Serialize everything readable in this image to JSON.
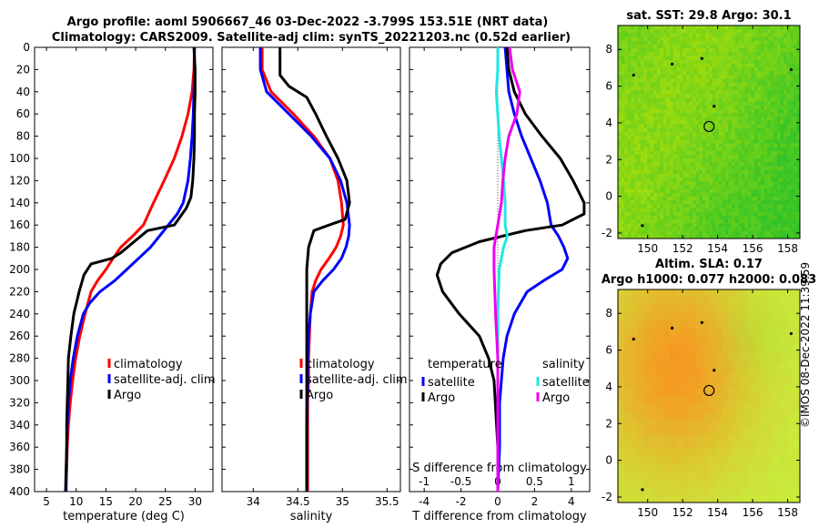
{
  "title_line1": "Argo profile: aoml 5906667_46 03-Dec-2022 -3.799S 153.51E (NRT data)",
  "title_line2": "Climatology: CARS2009. Satellite-adj clim: synTS_20221203.nc (0.52d earlier)",
  "credit": "©IMOS 08-Dec-2022 11:39:59",
  "colors": {
    "climatology": "#ff0000",
    "satellite": "#0000ff",
    "argo": "#000000",
    "sal_sat": "#22e5e5",
    "sal_argo": "#ee00ee"
  },
  "depth_ticks": [
    "0",
    "20",
    "40",
    "60",
    "80",
    "100",
    "120",
    "140",
    "160",
    "180",
    "200",
    "220",
    "240",
    "260",
    "280",
    "300",
    "320",
    "340",
    "360",
    "380",
    "400"
  ],
  "chart_data": [
    {
      "type": "line",
      "name": "temperature",
      "xlabel": "temperature (deg C)",
      "xlim": [
        3,
        33
      ],
      "ylim": [
        400,
        0
      ],
      "xticks": [
        "5",
        "10",
        "15",
        "20",
        "25",
        "30"
      ],
      "legend": [
        "climatology",
        "satellite-adj. clim",
        "Argo"
      ],
      "series": [
        {
          "name": "climatology",
          "color": "#ff0000",
          "x": [
            29.9,
            29.8,
            29.5,
            28.8,
            27.8,
            26.5,
            24.8,
            23,
            21.3,
            19.5,
            17.5,
            16.2,
            15,
            13.6,
            12.5,
            11.5,
            10.6,
            9.9,
            9.4,
            9,
            8.7,
            8.5,
            8.4,
            8.3,
            8.3
          ],
          "y": [
            0,
            20,
            40,
            60,
            80,
            100,
            120,
            140,
            160,
            170,
            180,
            190,
            200,
            210,
            220,
            240,
            260,
            280,
            300,
            320,
            340,
            360,
            380,
            390,
            400
          ]
        },
        {
          "name": "satellite-adj. clim",
          "color": "#0000ff",
          "x": [
            29.9,
            29.9,
            29.8,
            29.7,
            29.5,
            29.2,
            28.8,
            28,
            27,
            25.5,
            24,
            22.5,
            20.5,
            18.5,
            16.5,
            14,
            12.3,
            11.2,
            10.2,
            9.5,
            9,
            8.7,
            8.5,
            8.4,
            8.3
          ],
          "y": [
            0,
            20,
            40,
            60,
            80,
            100,
            120,
            140,
            150,
            160,
            170,
            180,
            190,
            200,
            210,
            220,
            230,
            240,
            260,
            280,
            300,
            320,
            340,
            360,
            400
          ]
        },
        {
          "name": "Argo",
          "color": "#000000",
          "x": [
            29.8,
            30,
            30,
            29.9,
            29.9,
            29.8,
            29.6,
            29.3,
            28.5,
            26.5,
            22,
            17.5,
            16,
            12.5,
            11.3,
            10.5,
            9.6,
            9.1,
            8.7,
            8.6,
            8.5,
            8.4,
            8.4,
            8.3,
            8.2
          ],
          "y": [
            0,
            20,
            40,
            60,
            80,
            100,
            120,
            135,
            145,
            160,
            165,
            185,
            190,
            195,
            205,
            220,
            240,
            260,
            280,
            300,
            320,
            340,
            360,
            380,
            400
          ]
        }
      ]
    },
    {
      "type": "line",
      "name": "salinity",
      "xlabel": "salinity",
      "xlim": [
        33.65,
        35.65
      ],
      "ylim": [
        400,
        0
      ],
      "xticks": [
        "34",
        "34.5",
        "35",
        "35.5"
      ],
      "legend": [
        "climatology",
        "satellite-adj. clim",
        "Argo"
      ],
      "series": [
        {
          "name": "climatology",
          "color": "#ff0000",
          "x": [
            34.1,
            34.1,
            34.2,
            34.45,
            34.68,
            34.86,
            34.95,
            34.99,
            35.01,
            34.98,
            34.93,
            34.85,
            34.76,
            34.7,
            34.66,
            34.64,
            34.63,
            34.62,
            34.62,
            34.61,
            34.61,
            34.61
          ],
          "y": [
            0,
            20,
            40,
            60,
            80,
            100,
            120,
            140,
            160,
            170,
            180,
            190,
            200,
            210,
            220,
            240,
            260,
            280,
            300,
            320,
            360,
            400
          ]
        },
        {
          "name": "satellite-adj. clim",
          "color": "#0000ff",
          "x": [
            34.08,
            34.08,
            34.15,
            34.4,
            34.65,
            34.86,
            34.98,
            35.05,
            35.08,
            35.07,
            35.04,
            34.99,
            34.9,
            34.78,
            34.68,
            34.64,
            34.62,
            34.61,
            34.61,
            34.6,
            34.6
          ],
          "y": [
            0,
            20,
            40,
            60,
            80,
            100,
            120,
            140,
            160,
            170,
            180,
            190,
            200,
            210,
            220,
            240,
            260,
            280,
            300,
            340,
            400
          ]
        },
        {
          "name": "Argo",
          "color": "#000000",
          "x": [
            34.3,
            34.3,
            34.3,
            34.4,
            34.6,
            34.7,
            34.82,
            34.95,
            35.05,
            35.08,
            35.03,
            34.85,
            34.68,
            34.62,
            34.6,
            34.6,
            34.6,
            34.6,
            34.6,
            34.6
          ],
          "y": [
            0,
            15,
            25,
            35,
            45,
            60,
            80,
            100,
            120,
            140,
            155,
            160,
            165,
            180,
            200,
            240,
            280,
            320,
            360,
            400
          ]
        }
      ]
    },
    {
      "type": "line",
      "name": "differences",
      "xlabel": "T difference from climatology",
      "xlabel_top": "S difference from climatology",
      "xlim": [
        -4.8,
        5
      ],
      "ylim": [
        400,
        0
      ],
      "xticks": [
        "-4",
        "-2",
        "0",
        "2",
        "4"
      ],
      "xlim_top": [
        -1.2,
        1.25
      ],
      "xticks_top": [
        "-1",
        "-0.5",
        "0",
        "0.5",
        "1"
      ],
      "legend_t_title": "temperature",
      "legend_s_title": "salinity",
      "legend": [
        "satellite",
        "Argo",
        "satellite",
        "Argo"
      ],
      "series": [
        {
          "name": "temperature satellite",
          "color": "#0000ff",
          "axis": "T",
          "x": [
            0.4,
            0.5,
            0.6,
            0.9,
            1.3,
            1.8,
            2.3,
            2.7,
            2.9,
            3.3,
            3.6,
            3.8,
            3.5,
            2.5,
            1.6,
            0.9,
            0.5,
            0.3,
            0.2,
            0.1,
            0.1,
            0
          ],
          "y": [
            0,
            20,
            40,
            60,
            80,
            100,
            120,
            140,
            160,
            170,
            180,
            190,
            200,
            210,
            220,
            240,
            260,
            280,
            300,
            320,
            360,
            400
          ]
        },
        {
          "name": "temperature Argo",
          "color": "#000000",
          "axis": "T",
          "x": [
            0.5,
            0.6,
            0.9,
            1.5,
            2.4,
            3.4,
            4.1,
            4.7,
            4.7,
            3.5,
            1.5,
            -1,
            -2.5,
            -3.1,
            -3.3,
            -3,
            -2.1,
            -1,
            -0.5,
            -0.2,
            -0.1,
            0,
            0
          ],
          "y": [
            0,
            20,
            40,
            60,
            80,
            100,
            120,
            140,
            150,
            160,
            165,
            175,
            185,
            195,
            205,
            220,
            240,
            260,
            280,
            300,
            330,
            360,
            400
          ]
        },
        {
          "name": "salinity satellite",
          "color": "#22e5e5",
          "axis": "S",
          "x": [
            0,
            0,
            -0.02,
            0,
            0.02,
            0.05,
            0.08,
            0.1,
            0.1,
            0.13,
            0.08,
            0.05,
            0.02,
            0.01,
            0,
            0,
            0
          ],
          "y": [
            0,
            20,
            40,
            60,
            80,
            100,
            120,
            140,
            160,
            170,
            180,
            190,
            200,
            220,
            240,
            300,
            400
          ]
        },
        {
          "name": "salinity Argo",
          "color": "#ee00ee",
          "axis": "S",
          "x": [
            0.16,
            0.2,
            0.3,
            0.26,
            0.15,
            0.1,
            0.07,
            0.05,
            0,
            -0.05,
            -0.05,
            -0.03,
            0,
            0,
            0
          ],
          "y": [
            0,
            20,
            40,
            60,
            80,
            100,
            120,
            140,
            160,
            180,
            200,
            240,
            280,
            340,
            400
          ]
        }
      ]
    },
    {
      "type": "heatmap",
      "name": "sst_map",
      "title": "sat. SST: 29.8 Argo: 30.1",
      "xlim": [
        148.3,
        158.7
      ],
      "ylim": [
        -2.3,
        9.3
      ],
      "xticks": [
        "150",
        "152",
        "154",
        "156",
        "158"
      ],
      "yticks": [
        "-2",
        "0",
        "2",
        "4",
        "6",
        "8"
      ],
      "marker": {
        "lon": 153.51,
        "lat": 3.8
      }
    },
    {
      "type": "heatmap",
      "name": "sla_map",
      "title": "Altim. SLA: 0.17",
      "subtitle": "Argo h1000: 0.077 h2000: 0.083",
      "xlim": [
        148.3,
        158.7
      ],
      "ylim": [
        -2.3,
        9.3
      ],
      "xticks": [
        "150",
        "152",
        "154",
        "156",
        "158"
      ],
      "yticks": [
        "-2",
        "0",
        "2",
        "4",
        "6",
        "8"
      ],
      "marker": {
        "lon": 153.51,
        "lat": 3.8
      }
    }
  ]
}
